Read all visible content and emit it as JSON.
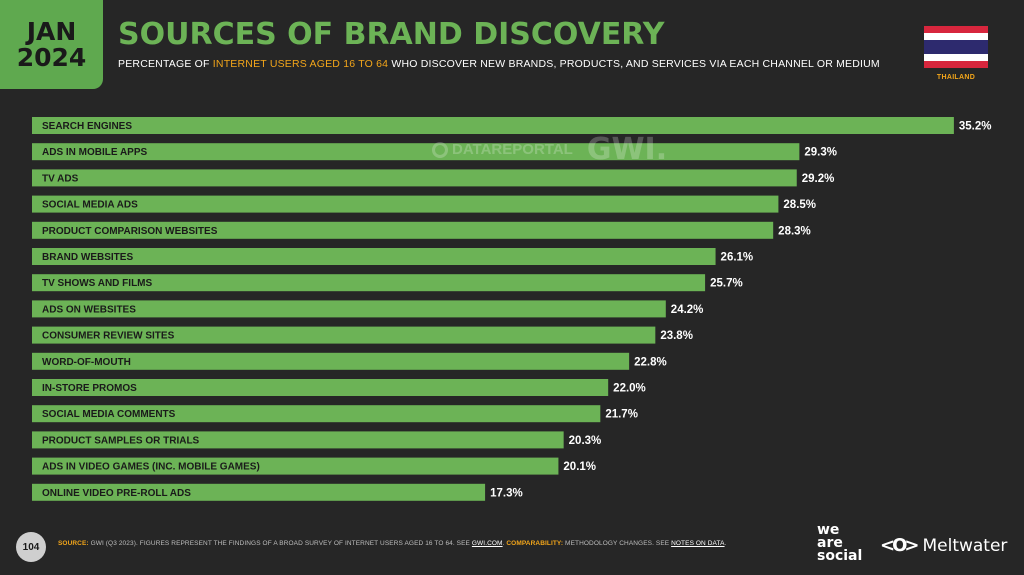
{
  "header": {
    "month": "JAN",
    "year": "2024",
    "title": "SOURCES OF BRAND DISCOVERY",
    "subtitle_pre": "PERCENTAGE OF ",
    "subtitle_highlight": "INTERNET USERS AGED 16 TO 64",
    "subtitle_post": " WHO DISCOVER NEW BRANDS, PRODUCTS, AND SERVICES VIA EACH CHANNEL OR MEDIUM",
    "country": "THAILAND"
  },
  "watermark": {
    "datareportal": "DATAREPORTAL",
    "gwi": "GWI."
  },
  "colors": {
    "bar": "#6cb356",
    "accent": "#f2a51a",
    "background": "#262626"
  },
  "chart_data": {
    "type": "bar",
    "orientation": "horizontal",
    "categories": [
      "SEARCH ENGINES",
      "ADS IN MOBILE APPS",
      "TV ADS",
      "SOCIAL MEDIA ADS",
      "PRODUCT COMPARISON WEBSITES",
      "BRAND WEBSITES",
      "TV SHOWS AND FILMS",
      "ADS ON WEBSITES",
      "CONSUMER REVIEW SITES",
      "WORD-OF-MOUTH",
      "IN-STORE PROMOS",
      "SOCIAL MEDIA COMMENTS",
      "PRODUCT SAMPLES OR TRIALS",
      "ADS IN VIDEO GAMES (INC. MOBILE GAMES)",
      "ONLINE VIDEO PRE-ROLL ADS"
    ],
    "values": [
      35.2,
      29.3,
      29.2,
      28.5,
      28.3,
      26.1,
      25.7,
      24.2,
      23.8,
      22.8,
      22.0,
      21.7,
      20.3,
      20.1,
      17.3
    ],
    "value_labels": [
      "35.2%",
      "29.3%",
      "29.2%",
      "28.5%",
      "28.3%",
      "26.1%",
      "25.7%",
      "24.2%",
      "23.8%",
      "22.8%",
      "22.0%",
      "21.7%",
      "20.3%",
      "20.1%",
      "17.3%"
    ],
    "unit": "%"
  },
  "footer": {
    "page_number": "104",
    "source_label": "SOURCE:",
    "source_text": " GWI (Q3 2023). FIGURES REPRESENT THE FINDINGS OF A BROAD SURVEY OF INTERNET USERS AGED 16 TO 64. SEE ",
    "source_link": "GWI.COM",
    "source_end": ". ",
    "comparability_label": "COMPARABILITY:",
    "comparability_text": " METHODOLOGY CHANGES. SEE ",
    "comparability_link": "NOTES ON DATA",
    "comparability_end": "."
  },
  "logos": {
    "we": "we",
    "are": "are",
    "social": "social",
    "meltwater_icon": "<O>",
    "meltwater": "Meltwater"
  }
}
